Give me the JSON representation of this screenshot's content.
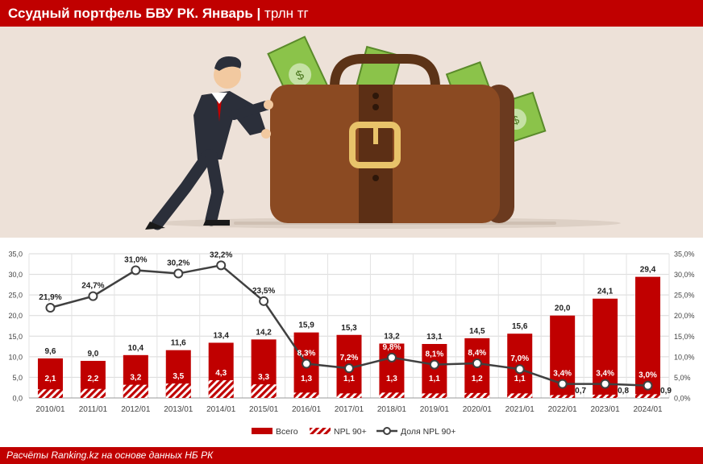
{
  "header": {
    "title": "Ссудный портфель БВУ РК. Январь",
    "separator": " | ",
    "unit": "трлн тг"
  },
  "footer": {
    "source": "Расчёты Ranking.kz на основе данных НБ РК"
  },
  "illustration": {
    "icon": "businessman-pushing-briefcase-with-money-icon"
  },
  "colors": {
    "brand": "#c00000",
    "bar": "#c00000",
    "line": "#404040",
    "background": "#ede1d8"
  },
  "chart_data": {
    "type": "bar",
    "categories": [
      "2010/01",
      "2011/01",
      "2012/01",
      "2013/01",
      "2014/01",
      "2015/01",
      "2016/01",
      "2017/01",
      "2018/01",
      "2019/01",
      "2020/01",
      "2021/01",
      "2022/01",
      "2023/01",
      "2024/01"
    ],
    "series": [
      {
        "name": "Всего",
        "type": "bar",
        "axis": "left",
        "values": [
          9.6,
          9.0,
          10.4,
          11.6,
          13.4,
          14.2,
          15.9,
          15.3,
          13.2,
          13.1,
          14.5,
          15.6,
          20.0,
          24.1,
          29.4
        ],
        "labels": [
          "9,6",
          "9,0",
          "10,4",
          "11,6",
          "13,4",
          "14,2",
          "15,9",
          "15,3",
          "13,2",
          "13,1",
          "14,5",
          "15,6",
          "20,0",
          "24,1",
          "29,4"
        ]
      },
      {
        "name": "NPL 90+",
        "type": "bar-hatched",
        "axis": "left",
        "values": [
          2.1,
          2.2,
          3.2,
          3.5,
          4.3,
          3.3,
          1.3,
          1.1,
          1.3,
          1.1,
          1.2,
          1.1,
          0.7,
          0.8,
          0.9
        ],
        "labels": [
          "2,1",
          "2,2",
          "3,2",
          "3,5",
          "4,3",
          "3,3",
          "1,3",
          "1,1",
          "1,3",
          "1,1",
          "1,2",
          "1,1",
          "0,7",
          "0,8",
          "0,9"
        ]
      },
      {
        "name": "Доля NPL 90+",
        "type": "line",
        "axis": "right",
        "values": [
          21.9,
          24.7,
          31.0,
          30.2,
          32.2,
          23.5,
          8.3,
          7.2,
          9.8,
          8.1,
          8.4,
          7.0,
          3.4,
          3.4,
          3.0
        ],
        "labels": [
          "21,9%",
          "24,7%",
          "31,0%",
          "30,2%",
          "32,2%",
          "23,5%",
          "8,3%",
          "7,2%",
          "9,8%",
          "8,1%",
          "8,4%",
          "7,0%",
          "3,4%",
          "3,4%",
          "3,0%"
        ]
      }
    ],
    "y_left": {
      "range": [
        0,
        35
      ],
      "ticks": [
        "0,0",
        "5,0",
        "10,0",
        "15,0",
        "20,0",
        "25,0",
        "30,0",
        "35,0"
      ]
    },
    "y_right": {
      "range": [
        0,
        35
      ],
      "ticks": [
        "0,0%",
        "5,0%",
        "10,0%",
        "15,0%",
        "20,0%",
        "25,0%",
        "30,0%",
        "35,0%"
      ]
    },
    "grid": true,
    "legend_position": "bottom",
    "legend": [
      "Всего",
      "NPL 90+",
      "Доля NPL 90+"
    ]
  }
}
